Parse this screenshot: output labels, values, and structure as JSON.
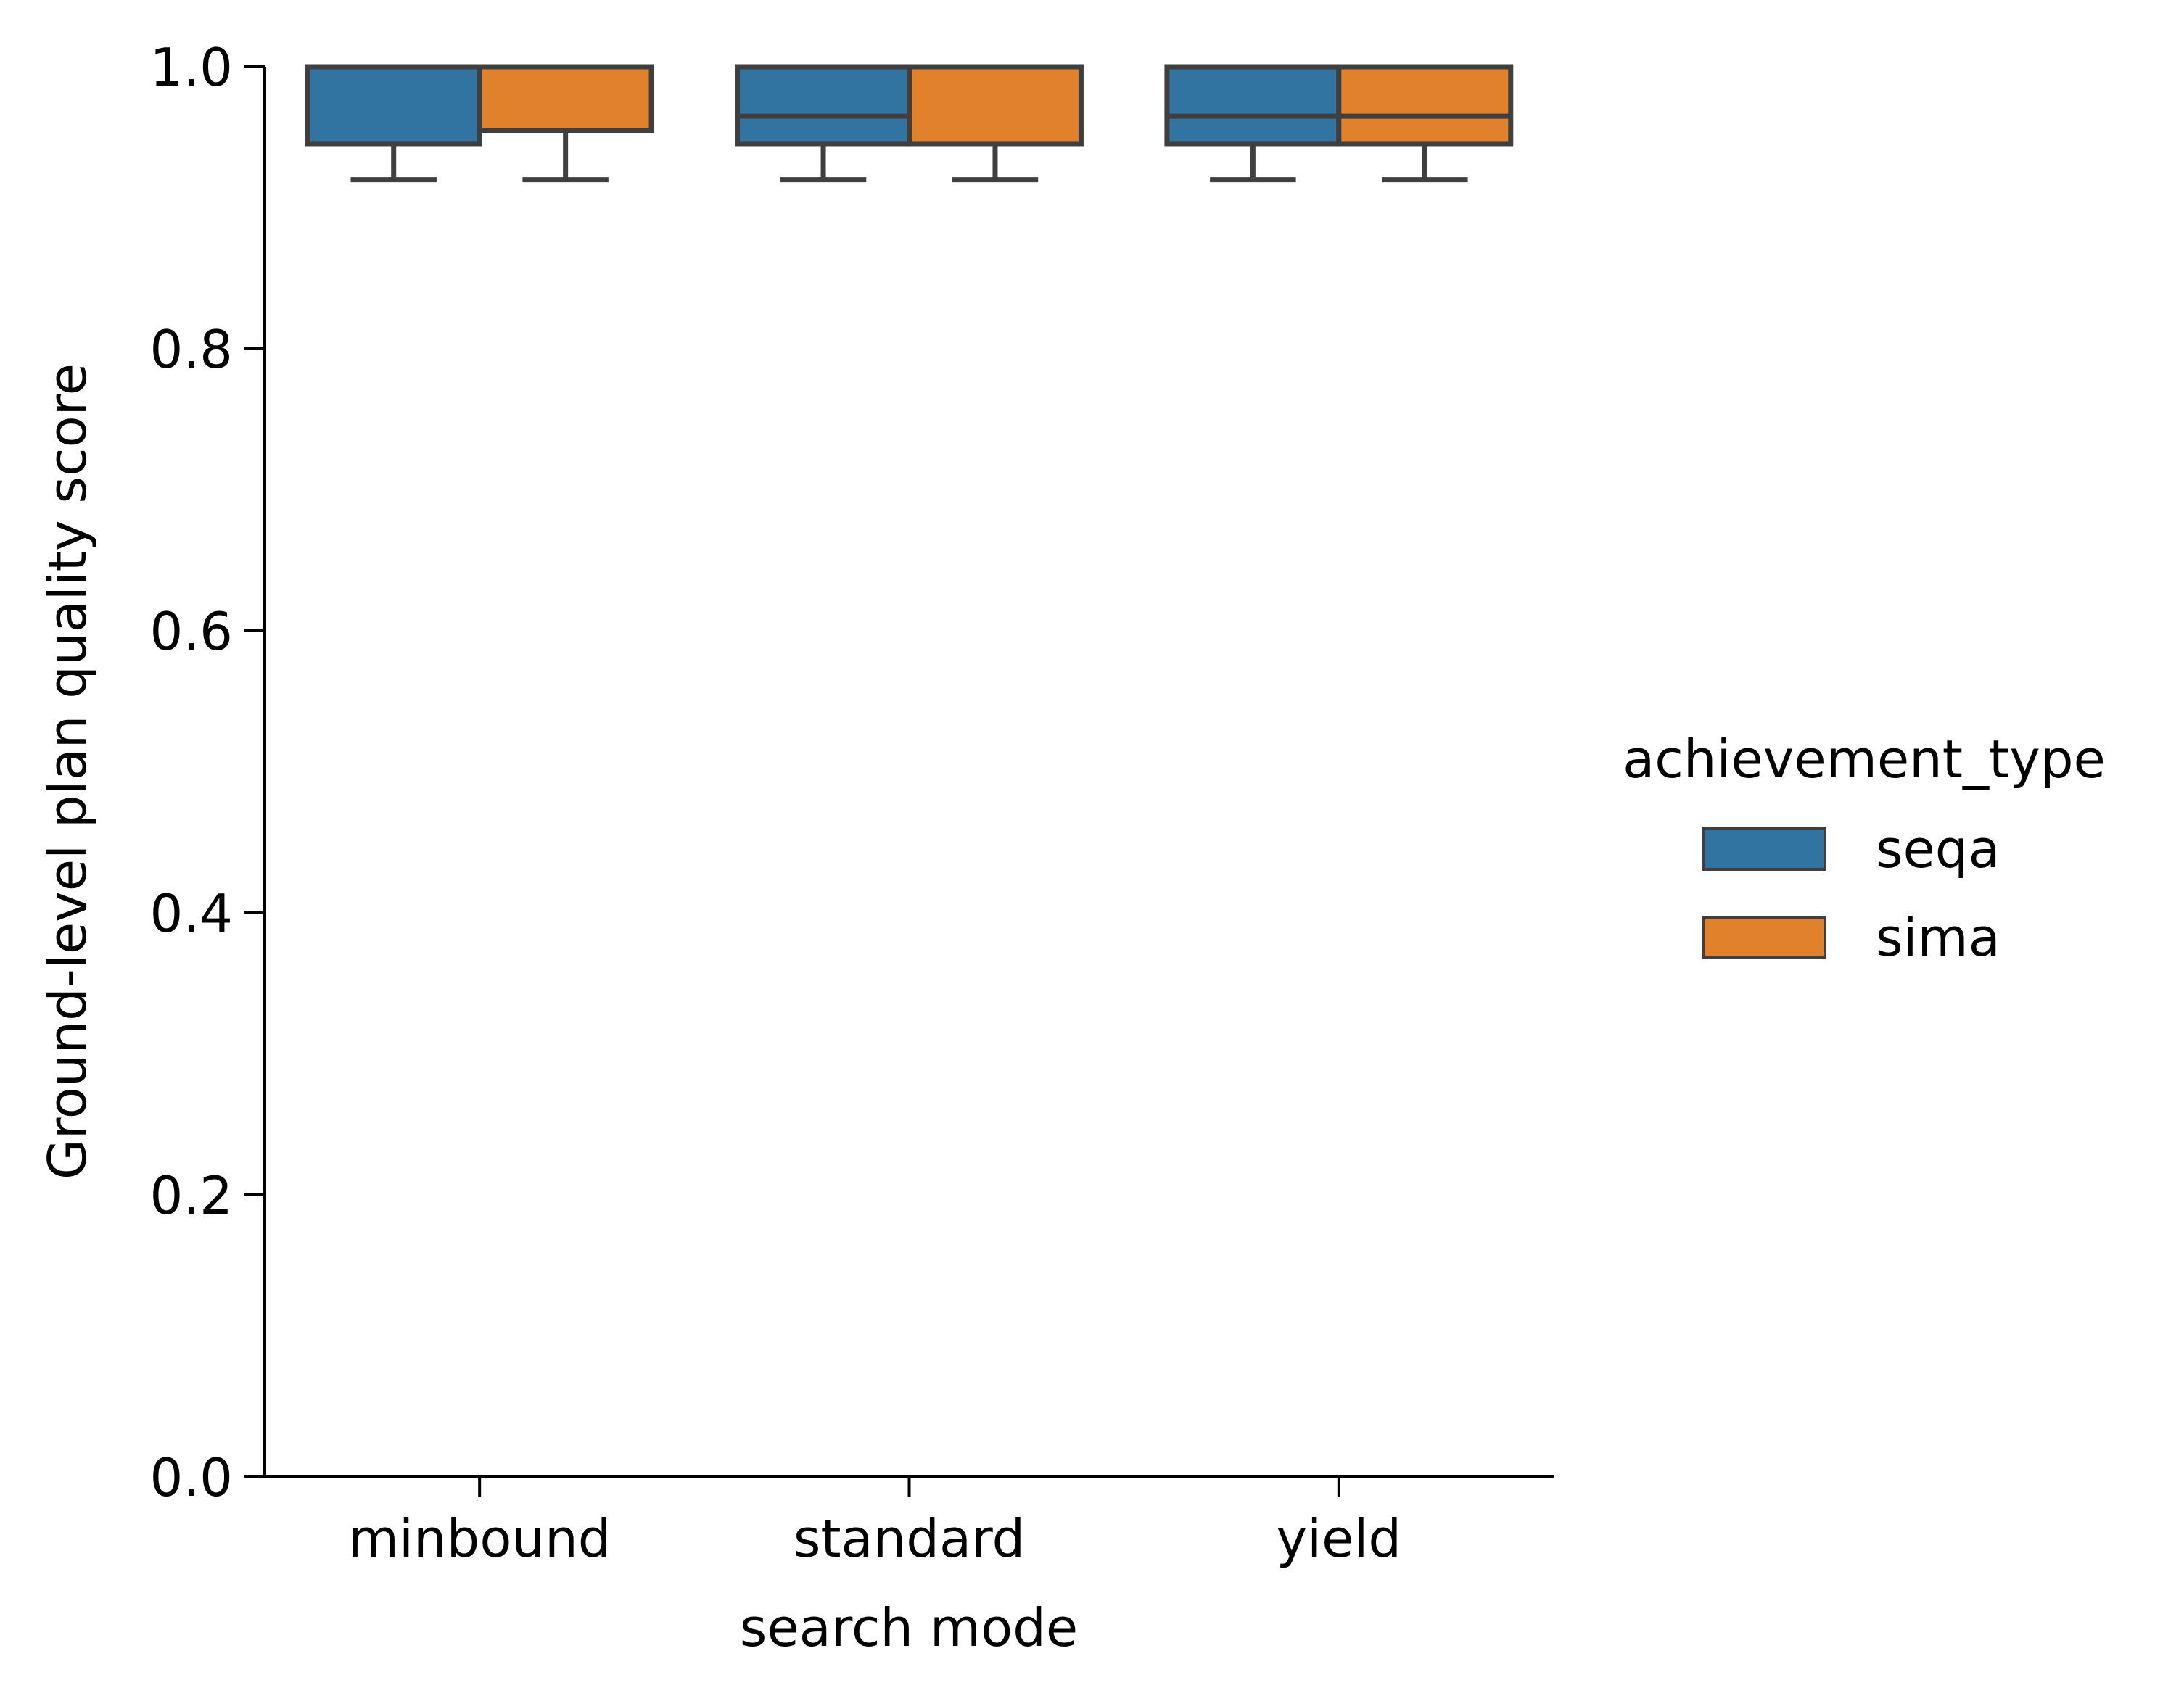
{
  "chart_data": {
    "type": "boxplot",
    "title": "",
    "xlabel": "search mode",
    "ylabel": "Ground-level plan quality score",
    "categories": [
      "minbound",
      "standard",
      "yield"
    ],
    "ylim": [
      0.0,
      1.0
    ],
    "yticks": [
      0.0,
      0.2,
      0.4,
      0.6,
      0.8,
      1.0
    ],
    "ytick_labels": [
      "0.0",
      "0.2",
      "0.4",
      "0.6",
      "0.8",
      "1.0"
    ],
    "grid": false,
    "legend": {
      "title": "achievement_type",
      "placement": "right",
      "entries": [
        "seqa",
        "sima"
      ]
    },
    "series": [
      {
        "name": "seqa",
        "color": "#3274a1",
        "boxes": [
          {
            "category": "minbound",
            "whisker_low": 0.92,
            "q1": 0.945,
            "median": 1.0,
            "q3": 1.0,
            "whisker_high": 1.0
          },
          {
            "category": "standard",
            "whisker_low": 0.92,
            "q1": 0.945,
            "median": 0.965,
            "q3": 1.0,
            "whisker_high": 1.0
          },
          {
            "category": "yield",
            "whisker_low": 0.92,
            "q1": 0.945,
            "median": 0.965,
            "q3": 1.0,
            "whisker_high": 1.0
          }
        ]
      },
      {
        "name": "sima",
        "color": "#e1812c",
        "boxes": [
          {
            "category": "minbound",
            "whisker_low": 0.92,
            "q1": 0.955,
            "median": 1.0,
            "q3": 1.0,
            "whisker_high": 1.0
          },
          {
            "category": "standard",
            "whisker_low": 0.92,
            "q1": 0.945,
            "median": 1.0,
            "q3": 1.0,
            "whisker_high": 1.0
          },
          {
            "category": "yield",
            "whisker_low": 0.92,
            "q1": 0.945,
            "median": 0.965,
            "q3": 1.0,
            "whisker_high": 1.0
          }
        ]
      }
    ]
  }
}
